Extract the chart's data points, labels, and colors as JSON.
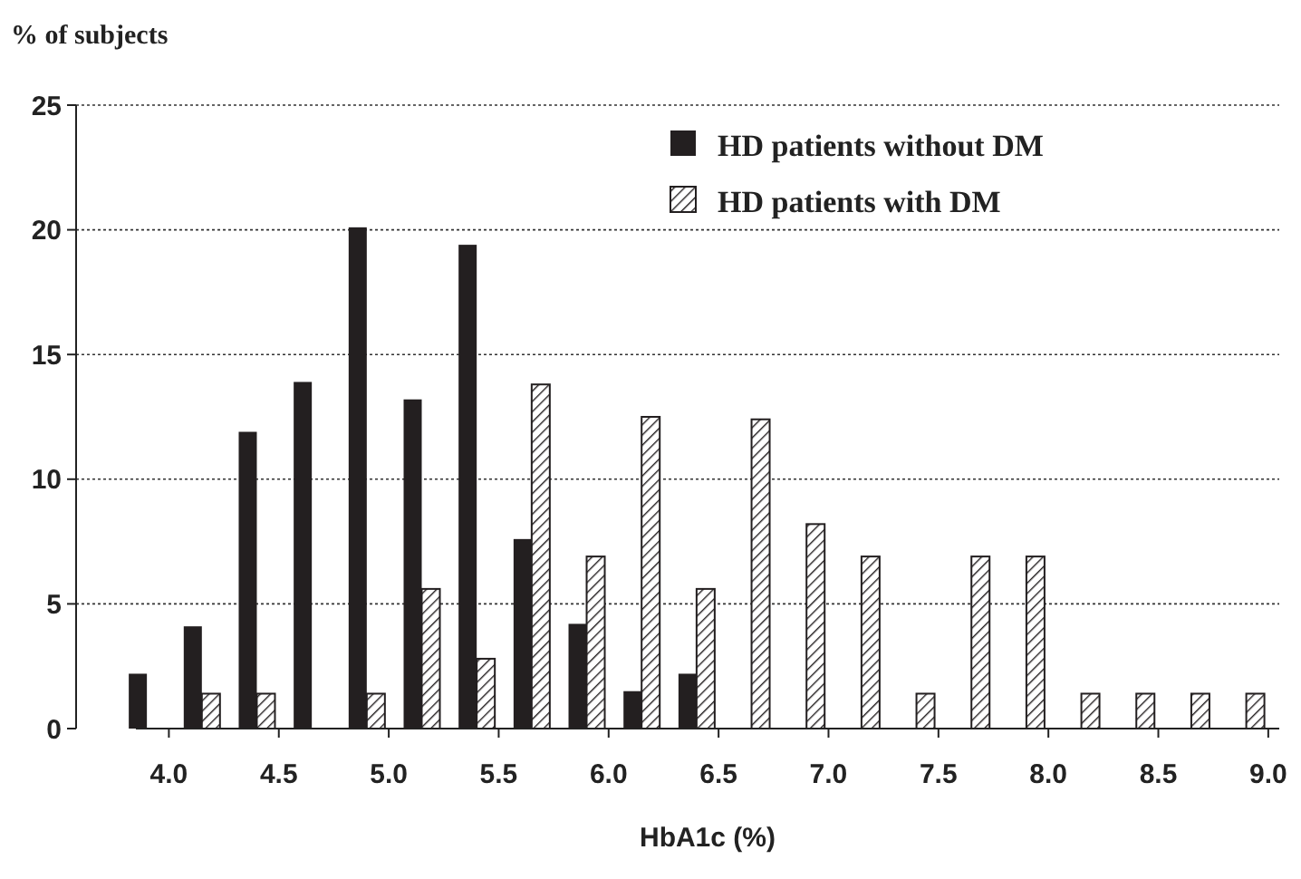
{
  "chart_data": {
    "type": "bar",
    "ylabel": "% of subjects",
    "xlabel": "HbA1c (%)",
    "x": [
      3.9,
      4.15,
      4.4,
      4.65,
      4.9,
      5.15,
      5.4,
      5.65,
      5.9,
      6.15,
      6.4,
      6.65,
      6.9,
      7.15,
      7.4,
      7.65,
      7.9,
      8.15,
      8.4,
      8.65,
      8.9
    ],
    "xlim": [
      3.85,
      9.05
    ],
    "xticks": [
      {
        "value": 4,
        "label": "4.0"
      },
      4.5,
      {
        "value": 5,
        "label": "5.0"
      },
      5.5,
      {
        "value": 6,
        "label": "6.0"
      },
      6.5,
      {
        "value": 7,
        "label": "7.0"
      },
      7.5,
      {
        "value": 8,
        "label": "8.0"
      },
      8.5,
      {
        "value": 9,
        "label": "9.0"
      }
    ],
    "ylim": [
      0,
      25
    ],
    "yticks": [
      0,
      5,
      10,
      15,
      20,
      25
    ],
    "grid": "y",
    "legend": "top right",
    "series": [
      {
        "name": "HD patients without DM",
        "color": "#231f20",
        "values": [
          2.2,
          4.1,
          11.9,
          13.9,
          20.1,
          13.2,
          19.4,
          7.6,
          4.2,
          1.5,
          2.2,
          null,
          null,
          null,
          null,
          null,
          null,
          null,
          null,
          null,
          null
        ]
      },
      {
        "name": "HD patients with DM",
        "color": "#231f20",
        "values": [
          null,
          1.4,
          1.4,
          null,
          1.4,
          5.6,
          2.8,
          13.8,
          6.9,
          12.5,
          5.6,
          12.4,
          8.2,
          6.9,
          1.4,
          6.9,
          6.9,
          1.4,
          1.4,
          1.4,
          1.4
        ]
      }
    ]
  }
}
